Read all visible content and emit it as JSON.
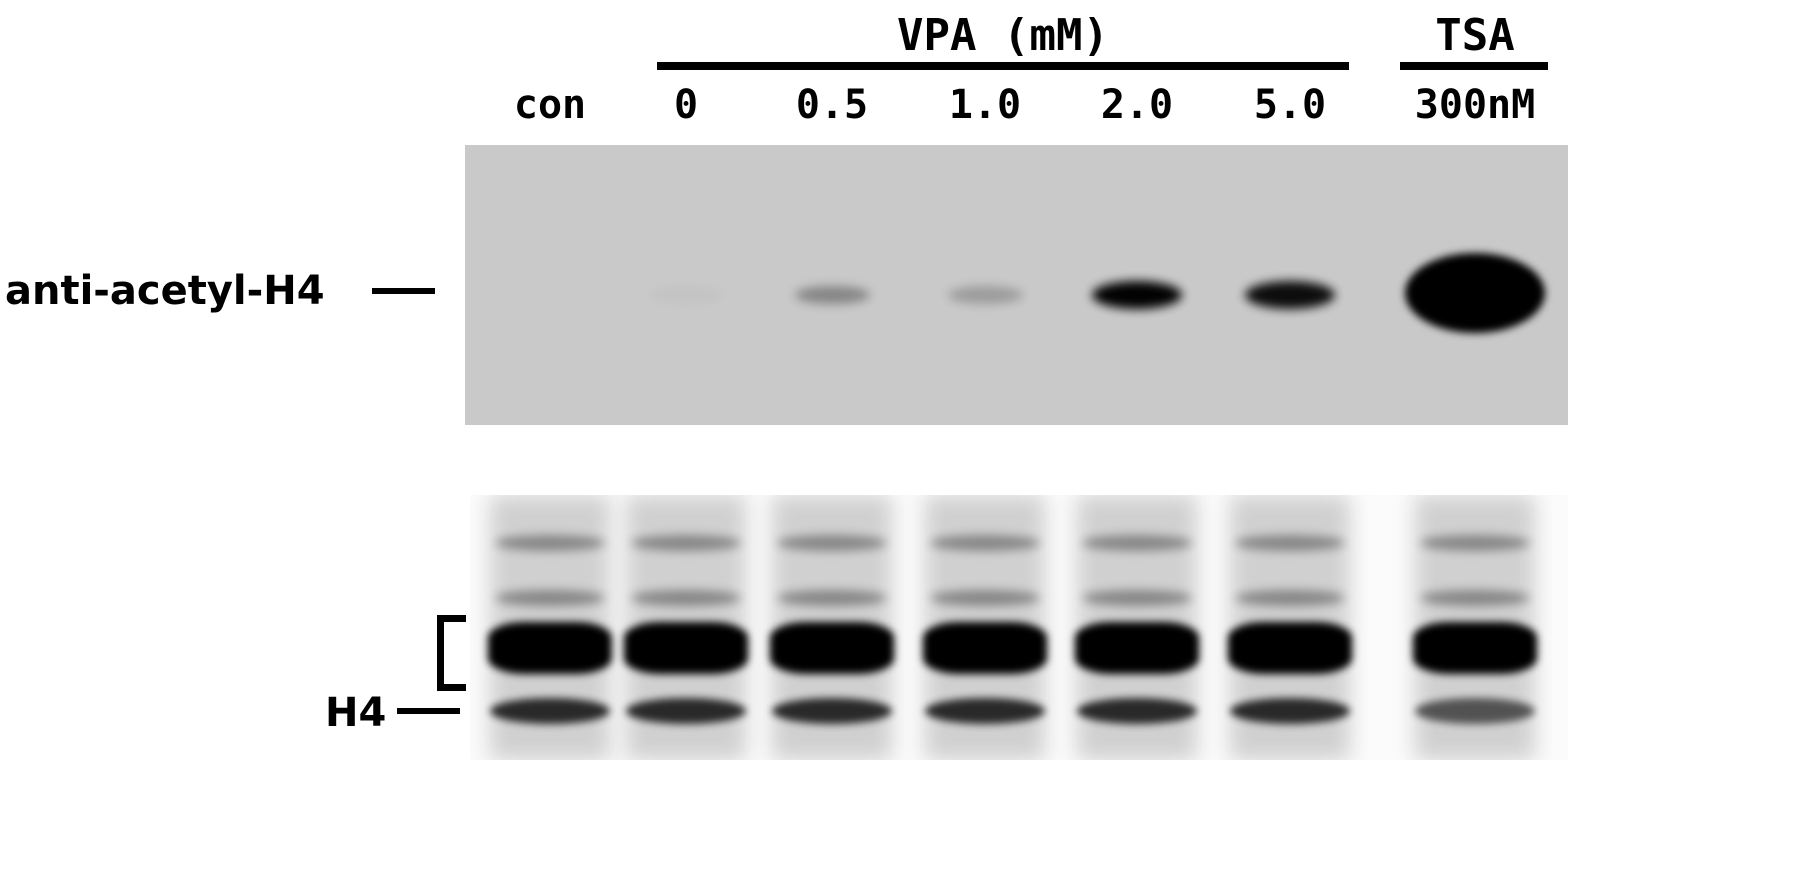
{
  "header": {
    "treatment_group": "VPA (mM)",
    "comparison_group": "TSA",
    "lanes": [
      "con",
      "0",
      "0.5",
      "1.0",
      "2.0",
      "5.0",
      "300nM"
    ]
  },
  "top_blot": {
    "label": "anti-acetyl-H4",
    "background": "#c9c9c9",
    "band_intensity": [
      0,
      0.02,
      0.3,
      0.2,
      0.9,
      0.85,
      1.0
    ]
  },
  "bottom_blot": {
    "label": "H4",
    "band_intensity": [
      1,
      1,
      1,
      1,
      1,
      1,
      1
    ]
  }
}
